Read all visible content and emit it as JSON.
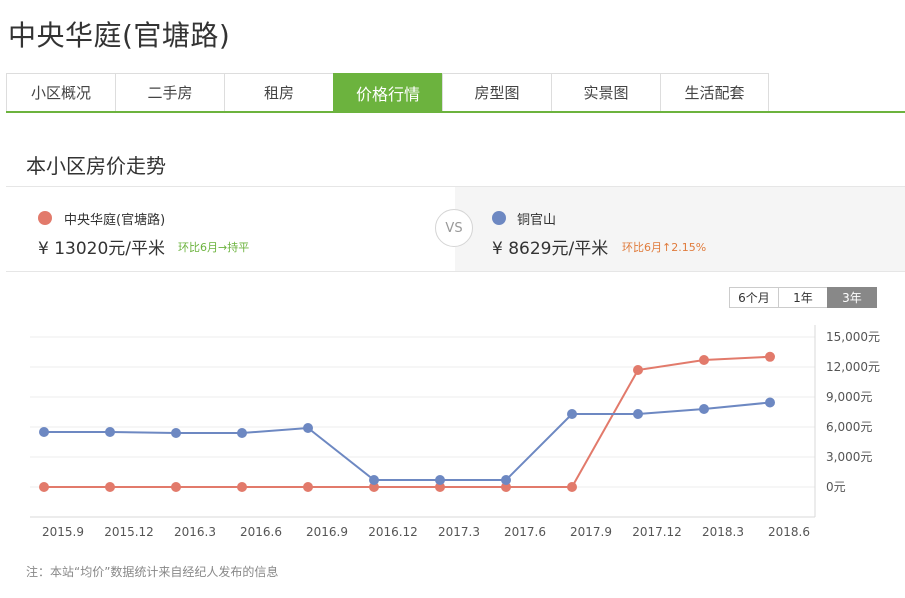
{
  "title": "中央华庭(官塘路)",
  "tabs": [
    "小区概况",
    "二手房",
    "租房",
    "价格行情",
    "房型图",
    "实景图",
    "生活配套"
  ],
  "active_tab": 3,
  "section_title": "本小区房价走势",
  "compare": {
    "left": {
      "name": "中央华庭(官塘路)",
      "price": "¥ 13020元/平米",
      "change": "环比6月→持平",
      "dot_color": "#e27a6b",
      "change_color": "#6cb33e"
    },
    "vs": "VS",
    "right": {
      "name": "铜官山",
      "price": "¥ 8629元/平米",
      "change": "环比6月↑2.15%",
      "dot_color": "#6d88c2",
      "change_color": "#e07b3c"
    }
  },
  "ranges": [
    "6个月",
    "1年",
    "3年"
  ],
  "active_range": 2,
  "note": "注：本站“均价”数据统计来自经纪人发布的信息",
  "chart_data": {
    "type": "line",
    "x": [
      "2015.9",
      "2015.12",
      "2016.3",
      "2016.6",
      "2016.9",
      "2016.12",
      "2017.3",
      "2017.6",
      "2017.9",
      "2017.12",
      "2018.3",
      "2018.6"
    ],
    "ytick_labels": [
      "0元",
      "3,000元",
      "6,000元",
      "9,000元",
      "12,000元",
      "15,000元"
    ],
    "ylim": [
      0,
      15000
    ],
    "grid": true,
    "series": [
      {
        "name": "中央华庭(官塘路)",
        "color": "#e27a6b",
        "values": [
          0,
          0,
          0,
          0,
          0,
          0,
          0,
          0,
          0,
          11700,
          12700,
          13020
        ]
      },
      {
        "name": "铜官山",
        "color": "#6d88c2",
        "values": [
          5500,
          5500,
          5400,
          5400,
          5900,
          700,
          700,
          700,
          7300,
          7300,
          7800,
          8450
        ]
      }
    ]
  }
}
